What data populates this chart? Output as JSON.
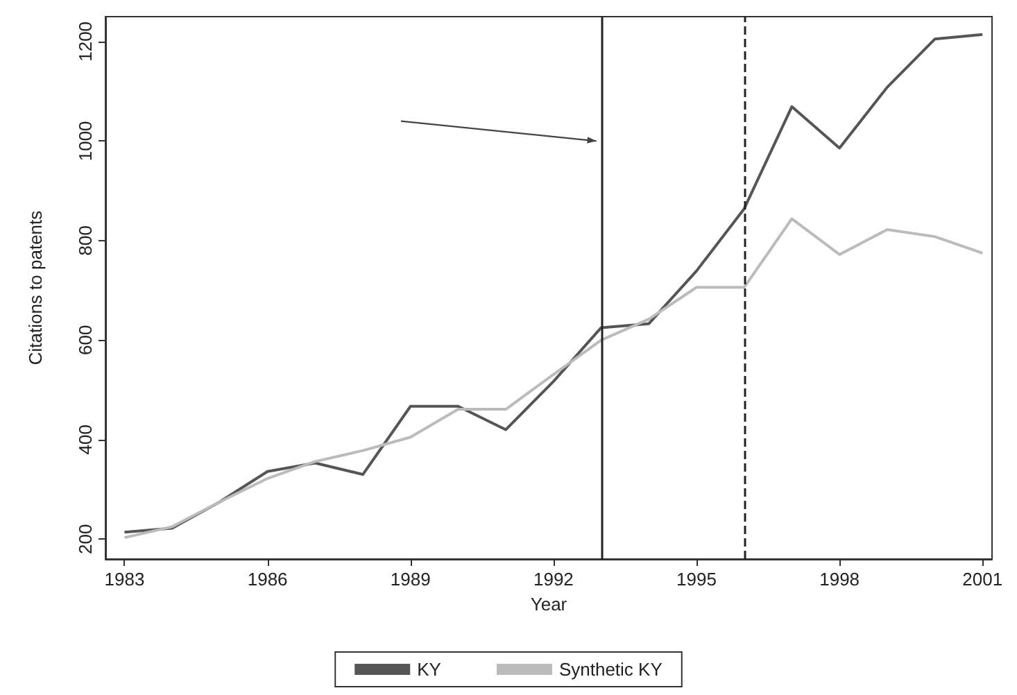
{
  "chart_data": {
    "type": "line",
    "xlabel": "Year",
    "ylabel": "Citations to patents",
    "x": [
      1983,
      1984,
      1985,
      1986,
      1987,
      1988,
      1989,
      1990,
      1991,
      1992,
      1993,
      1994,
      1995,
      1996,
      1997,
      1998,
      1999,
      2000,
      2001
    ],
    "series": [
      {
        "name": "KY",
        "color": "#555555",
        "values": [
          214,
          222,
          275,
          336,
          353,
          330,
          467,
          467,
          420,
          517,
          625,
          633,
          739,
          864,
          1069,
          986,
          1108,
          1205,
          1214
        ]
      },
      {
        "name": "Synthetic KY",
        "color": "#bbbbbb",
        "values": [
          203,
          225,
          275,
          322,
          356,
          378,
          405,
          461,
          461,
          531,
          600,
          642,
          706,
          706,
          844,
          772,
          822,
          808,
          775
        ]
      }
    ],
    "xlim": [
      1982.6,
      2001.2
    ],
    "xticks": [
      1983,
      1986,
      1989,
      1992,
      1995,
      1998,
      2001
    ],
    "ylim": [
      160,
      1250
    ],
    "yticks": [
      200,
      400,
      600,
      800,
      1000,
      1200
    ],
    "ref_lines": [
      {
        "axis": "x",
        "value": 1993,
        "color": "#222222",
        "line_style": "solid"
      },
      {
        "axis": "x",
        "value": 1996,
        "color": "#222222",
        "line_style": "dashed"
      }
    ],
    "grid": false,
    "legend": "bottom",
    "marker": "none",
    "line_style": "solid"
  }
}
